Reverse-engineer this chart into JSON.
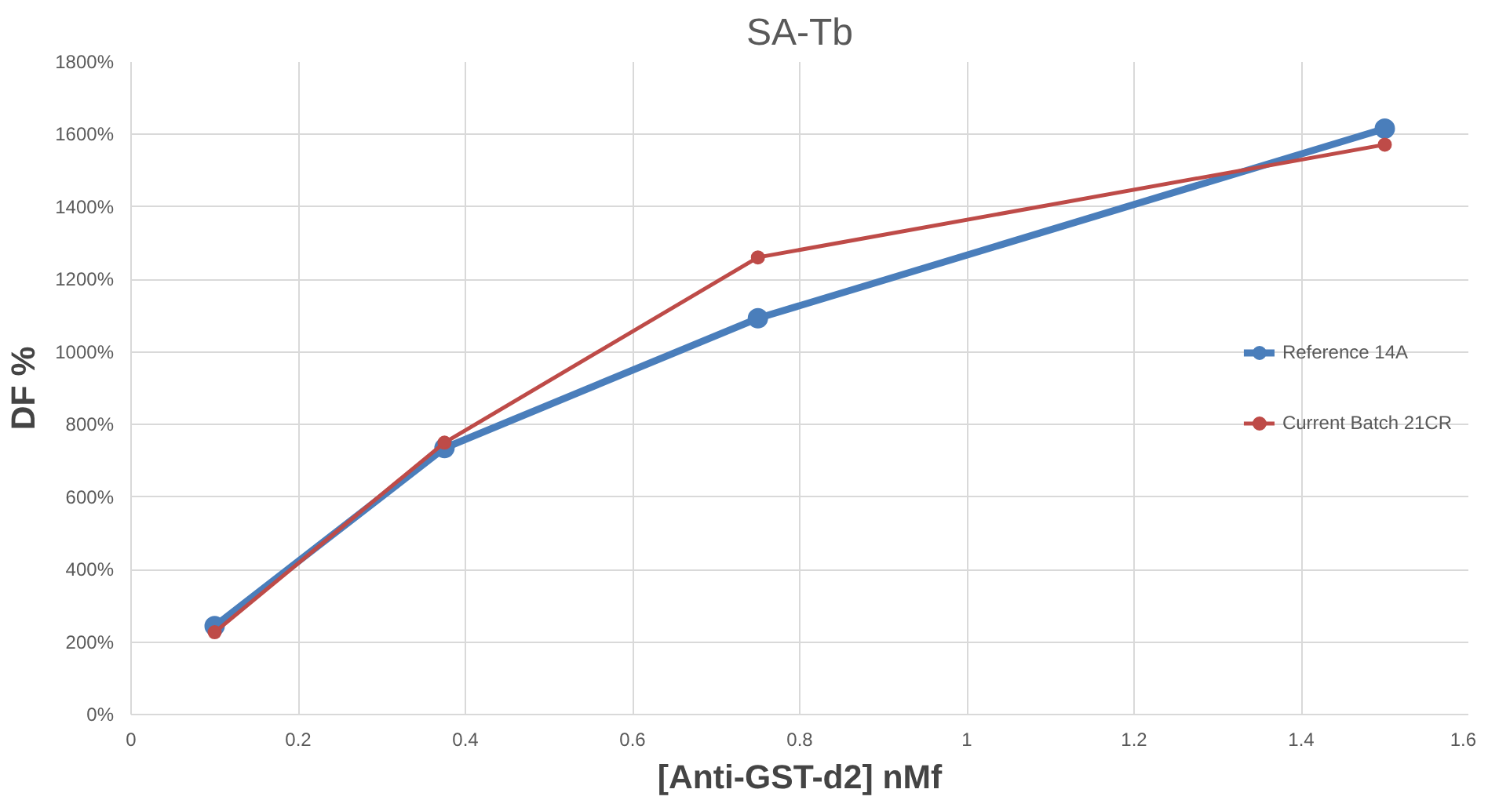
{
  "chart_data": {
    "type": "line",
    "title": "SA-Tb",
    "xlabel": "[Anti-GST-d2] nMf",
    "ylabel": "DF %",
    "x": [
      0.1,
      0.375,
      0.75,
      1.5
    ],
    "series": [
      {
        "name": "Reference 14A",
        "color": "#4a7ebb",
        "values": [
          244,
          735,
          1093,
          1616
        ]
      },
      {
        "name": "Current Batch 21CR",
        "color": "#be4b48",
        "values": [
          227,
          750,
          1261,
          1572
        ]
      }
    ],
    "xlim": [
      0,
      1.6
    ],
    "xticks": [
      0,
      0.2,
      0.4,
      0.6,
      0.8,
      1,
      1.2,
      1.4,
      1.6
    ],
    "ylim": [
      0,
      1800
    ],
    "yticks": [
      {
        "value": 0,
        "label": "0%"
      },
      {
        "value": 200,
        "label": "200%"
      },
      {
        "value": 400,
        "label": "400%"
      },
      {
        "value": 600,
        "label": "600%"
      },
      {
        "value": 800,
        "label": "800%"
      },
      {
        "value": 1000,
        "label": "1000%"
      },
      {
        "value": 1200,
        "label": "1200%"
      },
      {
        "value": 1400,
        "label": "1400%"
      },
      {
        "value": 1600,
        "label": "1600%"
      },
      {
        "value": 1800,
        "label": "1800%"
      }
    ],
    "grid": true,
    "legend": "right",
    "marker": "circle",
    "line_style": "solid"
  }
}
